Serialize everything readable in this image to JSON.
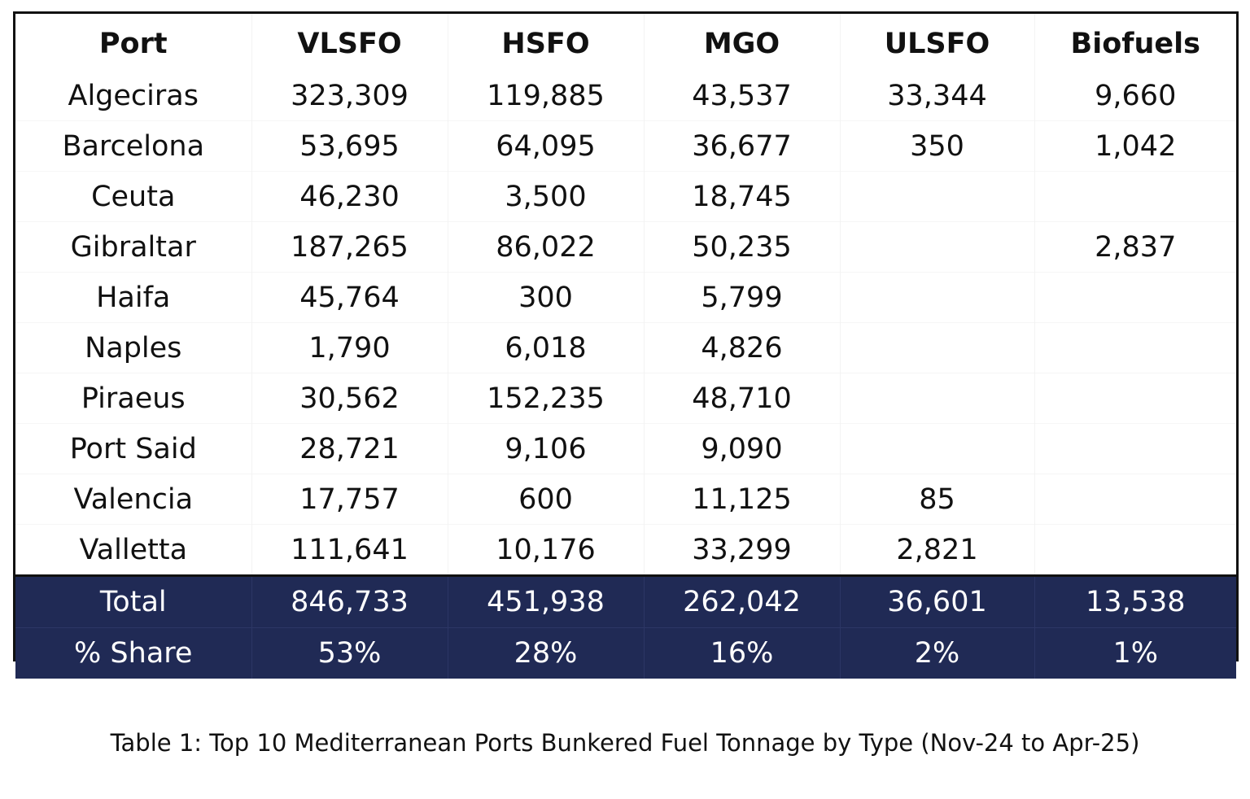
{
  "table": {
    "headers": [
      "Port",
      "VLSFO",
      "HSFO",
      "MGO",
      "ULSFO",
      "Biofuels"
    ],
    "rows": [
      [
        "Algeciras",
        "323,309",
        "119,885",
        "43,537",
        "33,344",
        "9,660"
      ],
      [
        "Barcelona",
        "53,695",
        "64,095",
        "36,677",
        "350",
        "1,042"
      ],
      [
        "Ceuta",
        "46,230",
        "3,500",
        "18,745",
        "",
        ""
      ],
      [
        "Gibraltar",
        "187,265",
        "86,022",
        "50,235",
        "",
        "2,837"
      ],
      [
        "Haifa",
        "45,764",
        "300",
        "5,799",
        "",
        ""
      ],
      [
        "Naples",
        "1,790",
        "6,018",
        "4,826",
        "",
        ""
      ],
      [
        "Piraeus",
        "30,562",
        "152,235",
        "48,710",
        "",
        ""
      ],
      [
        "Port Said",
        "28,721",
        "9,106",
        "9,090",
        "",
        ""
      ],
      [
        "Valencia",
        "17,757",
        "600",
        "11,125",
        "85",
        ""
      ],
      [
        "Valletta",
        "111,641",
        "10,176",
        "33,299",
        "2,821",
        ""
      ]
    ],
    "total": [
      "Total",
      "846,733",
      "451,938",
      "262,042",
      "36,601",
      "13,538"
    ],
    "share": [
      "% Share",
      "53%",
      "28%",
      "16%",
      "2%",
      "1%"
    ],
    "summary_background": "#202a55",
    "summary_text_color": "#ffffff"
  },
  "caption": "Table 1: Top 10 Mediterranean Ports Bunkered Fuel Tonnage by Type (Nov-24 to Apr-25)"
}
